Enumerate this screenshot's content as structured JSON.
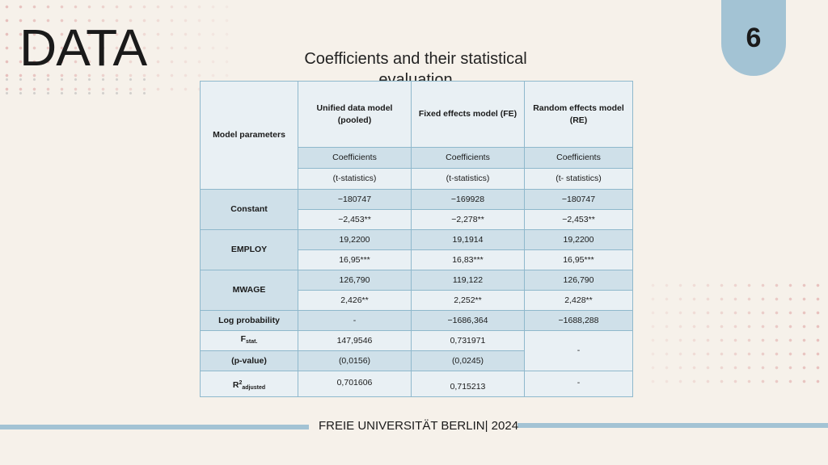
{
  "slide": {
    "title": "DATA",
    "subtitle": "Coefficients and their statistical evaluation",
    "page_number": "6",
    "footer": "FREIE UNIVERSITÄT BERLIN| 2024"
  },
  "colors": {
    "background": "#f6f1ea",
    "accent_blue": "#a3c3d4",
    "table_dark": "#cfe0e9",
    "table_light": "#e9f0f4",
    "dots": "#da9696"
  },
  "table": {
    "header": {
      "param_label": "Model parameters",
      "col1": "Unified data model (pooled)",
      "col2": "Fixed effects model (FE)",
      "col3": "Random effects model (RE)",
      "coef1": "Coefficients",
      "coef2": "Coefficients",
      "coef3": "Coefficients",
      "tstat1": "(t-statistics)",
      "tstat2": "(t-statistics)",
      "tstat3": "(t- statistics)"
    },
    "constant": {
      "label": "Constant",
      "c1": "−180747",
      "c2": "−169928",
      "c3": "−180747",
      "t1": "−2,453**",
      "t2": "−2,278**",
      "t3": "−2,453**"
    },
    "employ": {
      "label": "EMPLOY",
      "c1": "19,2200",
      "c2": "19,1914",
      "c3": "19,2200",
      "t1": "16,95***",
      "t2": "16,83***",
      "t3": "16,95***"
    },
    "mwage": {
      "label": "MWAGE",
      "c1": "126,790",
      "c2": "119,122",
      "c3": "126,790",
      "t1": "2,426**",
      "t2": "2,252**",
      "t3": "2,428**"
    },
    "log_probability": {
      "label": "Log probability",
      "v1": "-",
      "v2": "−1686,364",
      "v3": "−1688,288"
    },
    "f_stat": {
      "label_main": "F",
      "label_sub": "stat.",
      "v1": "147,9546",
      "v2": "0,731971"
    },
    "p_value": {
      "label": "(p-value)",
      "v1": "(0,0156)",
      "v2": "(0,0245)",
      "v3": "-"
    },
    "r2": {
      "label_main": "R",
      "label_sup": "2",
      "label_sub": "adjusted",
      "v1": "0,701606",
      "v2": "0,715213",
      "v3": "-"
    }
  }
}
